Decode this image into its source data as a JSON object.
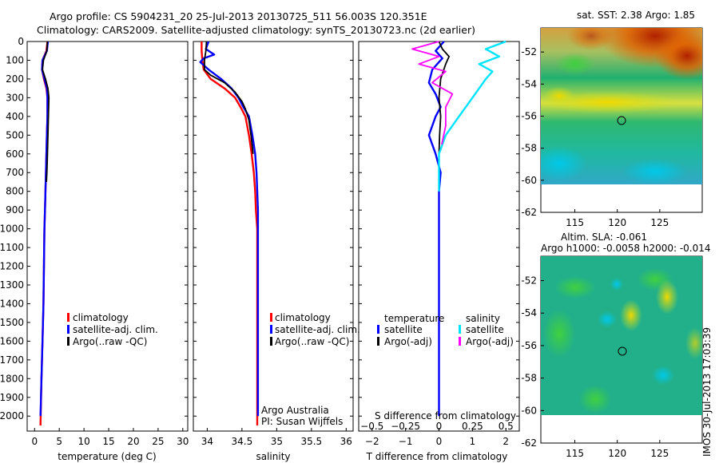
{
  "title_line1": "Argo profile: CS 5904231_20 25-Jul-2013 20130725_511 56.003S 120.351E",
  "title_line2": "Climatology: CARS2009. Satellite-adjusted climatology: synTS_20130723.nc (2d earlier)",
  "side_label": "IMOS 30-Jul-2013 17:03:39",
  "colors": {
    "climatology": "#ff0000",
    "satellite": "#0000ff",
    "argo": "#000000",
    "sal_satellite": "#00e5ff",
    "sal_argo": "#ff00ff"
  },
  "chart_data": [
    {
      "type": "line",
      "id": "temperature",
      "xlabel": "temperature (deg C)",
      "ylim": [
        0,
        2080
      ],
      "xlim": [
        -1.5,
        31
      ],
      "xticks": [
        0,
        5,
        10,
        15,
        20,
        25,
        30
      ],
      "yticks": [
        0,
        100,
        200,
        300,
        400,
        500,
        600,
        700,
        800,
        900,
        1000,
        1100,
        1200,
        1300,
        1400,
        1500,
        1600,
        1700,
        1800,
        1900,
        2000
      ],
      "legend": {
        "position": "lower-middle",
        "entries": [
          "climatology",
          "satellite-adj. clim.",
          "Argo(..raw -QC)"
        ]
      },
      "series": [
        {
          "name": "climatology",
          "color": "#ff0000",
          "x": [
            2.6,
            2.4,
            1.6,
            1.5,
            1.9,
            2.4,
            2.6,
            2.6,
            2.5,
            2.4,
            2.3,
            2.2,
            2.1,
            2.0,
            1.9,
            1.8,
            1.6,
            1.4,
            1.2
          ],
          "y": [
            0,
            50,
            100,
            150,
            200,
            250,
            300,
            400,
            500,
            600,
            700,
            800,
            900,
            1000,
            1200,
            1400,
            1600,
            1800,
            2050
          ]
        },
        {
          "name": "satellite",
          "color": "#0000ff",
          "x": [
            2.7,
            2.5,
            1.6,
            1.5,
            2.0,
            2.5,
            2.6,
            2.6,
            2.5,
            2.4,
            2.3,
            2.2,
            2.1,
            2.0,
            1.9,
            1.8,
            1.6,
            1.4,
            1.2
          ],
          "y": [
            0,
            50,
            100,
            150,
            200,
            250,
            300,
            400,
            500,
            600,
            700,
            800,
            900,
            1000,
            1200,
            1400,
            1600,
            1800,
            2000
          ]
        },
        {
          "name": "argo",
          "color": "#000000",
          "x": [
            2.6,
            2.5,
            1.8,
            1.6,
            2.2,
            2.7,
            2.9,
            2.8,
            2.7,
            2.6,
            2.5,
            2.4
          ],
          "y": [
            0,
            50,
            100,
            150,
            200,
            250,
            300,
            400,
            500,
            600,
            700,
            750
          ]
        }
      ]
    },
    {
      "type": "line",
      "id": "salinity",
      "xlabel": "salinity",
      "ylim": [
        0,
        2080
      ],
      "xlim": [
        33.8,
        36.1
      ],
      "xticks": [
        34,
        34.5,
        35,
        35.5,
        36
      ],
      "legend": {
        "position": "lower-middle",
        "entries": [
          "climatology",
          "satellite-adj. clim.",
          "Argo(..raw -QC)"
        ]
      },
      "annotation": [
        "Argo Australia",
        "PI: Susan Wijffels"
      ],
      "series": [
        {
          "name": "climatology",
          "color": "#ff0000",
          "x": [
            33.92,
            33.92,
            33.93,
            33.95,
            34.05,
            34.25,
            34.4,
            34.48,
            34.55,
            34.6,
            34.64,
            34.67,
            34.69,
            34.7,
            34.72,
            34.72,
            34.72,
            34.72,
            34.72
          ],
          "y": [
            0,
            50,
            100,
            150,
            200,
            250,
            300,
            350,
            400,
            500,
            600,
            700,
            800,
            900,
            1000,
            1200,
            1500,
            1800,
            2050
          ]
        },
        {
          "name": "satellite",
          "color": "#0000ff",
          "x": [
            34.02,
            33.98,
            34.1,
            33.95,
            33.9,
            34.02,
            34.2,
            34.35,
            34.45,
            34.52,
            34.6,
            34.65,
            34.69,
            34.71,
            34.72,
            34.73,
            34.73,
            34.73,
            34.73,
            34.73
          ],
          "y": [
            0,
            40,
            70,
            90,
            110,
            150,
            200,
            250,
            300,
            350,
            400,
            500,
            600,
            700,
            800,
            900,
            1200,
            1500,
            1800,
            2000
          ]
        },
        {
          "name": "argo",
          "color": "#000000",
          "x": [
            33.99,
            33.98,
            33.96,
            33.96,
            34.05,
            34.25,
            34.4,
            34.5,
            34.55,
            34.6,
            34.63,
            34.66
          ],
          "y": [
            0,
            50,
            100,
            150,
            180,
            220,
            270,
            320,
            360,
            420,
            500,
            600
          ]
        }
      ]
    },
    {
      "type": "line",
      "id": "difference",
      "xlabel": "T difference from climatology",
      "x2label": "S difference from climatology",
      "ylim": [
        0,
        2080
      ],
      "xlim": [
        -2.4,
        2.4
      ],
      "xticks": [
        -2,
        -1,
        0,
        1,
        2
      ],
      "xticklabels": [
        "−2",
        "−1",
        "0",
        "1",
        "2"
      ],
      "x2ticks": [
        -0.5,
        -0.25,
        0,
        0.25,
        0.5
      ],
      "x2ticklabels": [
        "−0.5",
        "−0.25",
        "0",
        "0.25",
        "0.5"
      ],
      "legend": {
        "position": "lower-middle",
        "headers": [
          "temperature",
          "salinity"
        ],
        "entries": [
          "satellite",
          "Argo(-adj)",
          "satellite",
          "Argo(-adj)"
        ]
      },
      "series": [
        {
          "name": "T satellite",
          "color": "#0000ff",
          "x": [
            0.15,
            -0.1,
            0.1,
            -0.2,
            -0.3,
            -0.1,
            0.05,
            -0.1,
            -0.2,
            -0.3,
            -0.1,
            0.05,
            0,
            0,
            0,
            0
          ],
          "y": [
            0,
            50,
            90,
            150,
            220,
            280,
            350,
            400,
            450,
            500,
            600,
            700,
            800,
            1000,
            1500,
            2000
          ]
        },
        {
          "name": "T argo",
          "color": "#000000",
          "x": [
            0,
            0.1,
            0.3,
            0.2,
            0.05,
            0,
            0.05,
            0.02,
            0,
            0
          ],
          "y": [
            0,
            40,
            80,
            120,
            200,
            300,
            400,
            500,
            600,
            700
          ]
        },
        {
          "name": "S satellite",
          "color": "#00e5ff",
          "x": [
            0.5,
            0.35,
            0.45,
            0.3,
            0.4,
            0.35,
            0.25,
            0.15,
            0.05,
            0.0,
            0,
            0
          ],
          "y": [
            0,
            40,
            80,
            120,
            160,
            200,
            300,
            400,
            500,
            600,
            700,
            800
          ]
        },
        {
          "name": "S argo",
          "color": "#ff00ff",
          "x": [
            0,
            -0.2,
            0,
            -0.15,
            0.05,
            -0.05,
            0.1,
            0.05,
            0.05,
            0.02
          ],
          "y": [
            0,
            40,
            80,
            120,
            160,
            220,
            280,
            350,
            450,
            550
          ]
        }
      ]
    },
    {
      "type": "heatmap",
      "id": "sst_map",
      "title": "sat. SST: 2.38  Argo: 1.85",
      "xlim": [
        111,
        130
      ],
      "ylim": [
        -62,
        -50.5
      ],
      "xticks": [
        115,
        120,
        125
      ],
      "yticks": [
        -52,
        -54,
        -56,
        -58,
        -60,
        -62
      ],
      "marker": {
        "x": 120.351,
        "y": -56.003
      }
    },
    {
      "type": "heatmap",
      "id": "sla_map",
      "title_line1": "Altim. SLA: -0.061",
      "title_line2": "Argo h1000: -0.0058 h2000: -0.014",
      "xlim": [
        111,
        130
      ],
      "ylim": [
        -62,
        -50.5
      ],
      "xticks": [
        115,
        120,
        125
      ],
      "yticks": [
        -52,
        -54,
        -56,
        -58,
        -60,
        -62
      ],
      "marker": {
        "x": 120.351,
        "y": -56.003
      }
    }
  ]
}
